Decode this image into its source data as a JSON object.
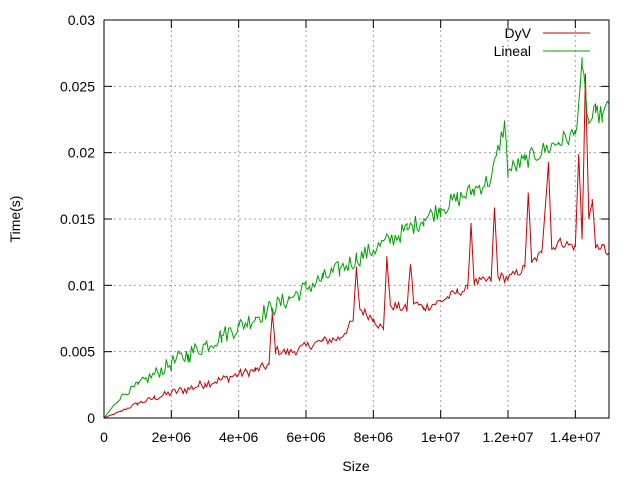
{
  "chart_data": {
    "type": "line",
    "title": "",
    "xlabel": "Size",
    "ylabel": "Time(s)",
    "xlim": [
      0,
      15000000
    ],
    "ylim": [
      0,
      0.03
    ],
    "x_ticks": [
      {
        "value": 0,
        "label": "0"
      },
      {
        "value": 2000000,
        "label": "2e+06"
      },
      {
        "value": 4000000,
        "label": "4e+06"
      },
      {
        "value": 6000000,
        "label": "6e+06"
      },
      {
        "value": 8000000,
        "label": "8e+06"
      },
      {
        "value": 10000000,
        "label": "1e+07"
      },
      {
        "value": 12000000,
        "label": "1.2e+07"
      },
      {
        "value": 14000000,
        "label": "1.4e+07"
      }
    ],
    "y_ticks": [
      {
        "value": 0,
        "label": "0"
      },
      {
        "value": 0.005,
        "label": "0.005"
      },
      {
        "value": 0.01,
        "label": "0.01"
      },
      {
        "value": 0.015,
        "label": "0.015"
      },
      {
        "value": 0.02,
        "label": "0.02"
      },
      {
        "value": 0.025,
        "label": "0.025"
      },
      {
        "value": 0.03,
        "label": "0.03"
      }
    ],
    "grid": true,
    "legend_position": "top-right",
    "series": [
      {
        "name": "DyV",
        "color": "#cc0000",
        "x": [
          0,
          500000,
          1000000,
          1500000,
          2000000,
          2500000,
          3000000,
          3500000,
          4000000,
          4500000,
          4900000,
          5000000,
          5100000,
          5500000,
          6000000,
          6500000,
          7000000,
          7400000,
          7500000,
          7600000,
          8000000,
          8300000,
          8400000,
          8500000,
          9000000,
          9100000,
          9200000,
          9500000,
          10000000,
          10500000,
          10800000,
          10900000,
          11000000,
          11500000,
          11600000,
          11700000,
          12000000,
          12500000,
          12600000,
          12700000,
          13000000,
          13200000,
          13300000,
          13500000,
          14000000,
          14100000,
          14200000,
          14300000,
          14400000,
          14500000,
          14600000,
          14800000,
          15000000
        ],
        "values": [
          0,
          0.0005,
          0.0011,
          0.0015,
          0.0019,
          0.0022,
          0.0026,
          0.0029,
          0.0033,
          0.0036,
          0.004,
          0.0078,
          0.0051,
          0.0049,
          0.0054,
          0.0058,
          0.006,
          0.0073,
          0.0112,
          0.0082,
          0.0075,
          0.0066,
          0.0122,
          0.0085,
          0.0082,
          0.0116,
          0.0087,
          0.0083,
          0.0088,
          0.0095,
          0.0097,
          0.0147,
          0.0102,
          0.0104,
          0.0158,
          0.0107,
          0.0105,
          0.0113,
          0.017,
          0.0117,
          0.0124,
          0.0193,
          0.0127,
          0.0133,
          0.0129,
          0.0198,
          0.0136,
          0.0259,
          0.015,
          0.0165,
          0.0128,
          0.013,
          0.0121
        ]
      },
      {
        "name": "Lineal",
        "color": "#00a000",
        "x": [
          0,
          500000,
          1000000,
          1500000,
          2000000,
          2500000,
          3000000,
          3500000,
          4000000,
          4500000,
          5000000,
          5500000,
          6000000,
          6500000,
          7000000,
          7500000,
          8000000,
          8500000,
          9000000,
          9500000,
          10000000,
          10500000,
          11000000,
          11500000,
          11900000,
          12000000,
          12500000,
          13000000,
          13500000,
          14000000,
          14200000,
          14400000,
          14600000,
          14800000,
          15000000
        ],
        "values": [
          0,
          0.0016,
          0.0025,
          0.0033,
          0.0041,
          0.0048,
          0.0055,
          0.0062,
          0.0069,
          0.0076,
          0.0083,
          0.009,
          0.0098,
          0.0105,
          0.0112,
          0.012,
          0.0127,
          0.0134,
          0.0142,
          0.015,
          0.0158,
          0.0165,
          0.0172,
          0.018,
          0.0222,
          0.0186,
          0.0194,
          0.0201,
          0.0208,
          0.0214,
          0.0265,
          0.0222,
          0.023,
          0.0228,
          0.0235
        ]
      }
    ]
  }
}
